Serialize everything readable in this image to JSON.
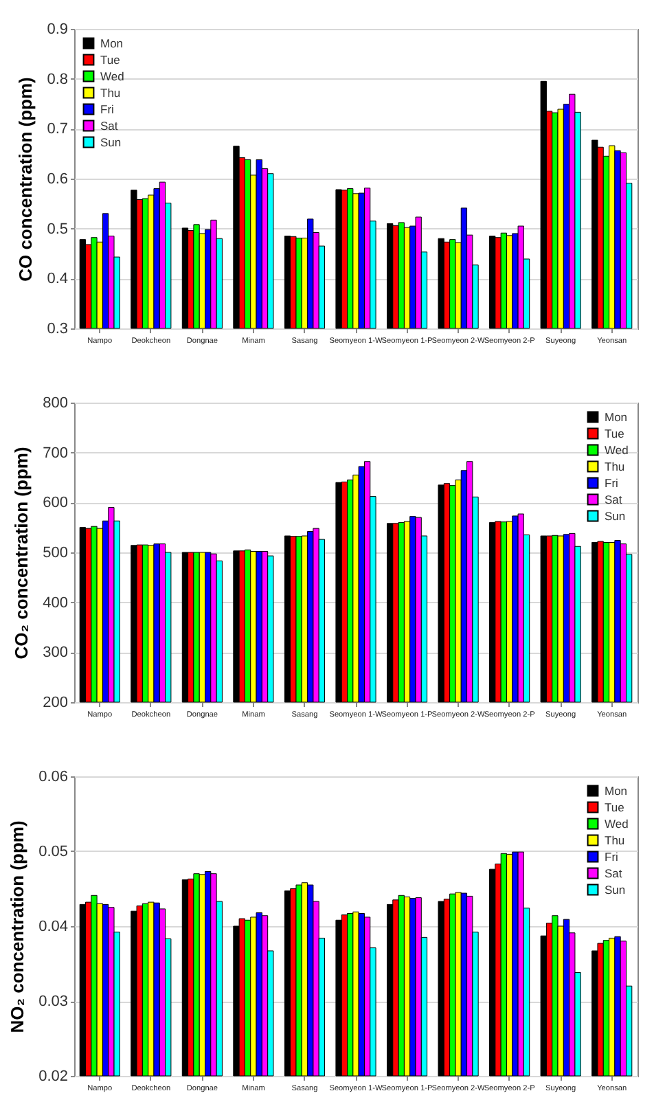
{
  "chart_data": [
    {
      "type": "bar",
      "ylabel": "CO concentration (ppm)",
      "categories": [
        "Nampo",
        "Deokcheon",
        "Dongnae",
        "Minam",
        "Sasang",
        "Seomyeon 1-W",
        "Seomyeon 1-P",
        "Seomyeon 2-W",
        "Seomyeon 2-P",
        "Suyeong",
        "Yeonsan"
      ],
      "ylim": [
        0.3,
        0.9
      ],
      "yticks": [
        0.3,
        0.4,
        0.5,
        0.6,
        0.7,
        0.8,
        0.9
      ],
      "grid": "y",
      "legend": "top left",
      "series": [
        {
          "name": "Mon",
          "color": "#000000",
          "values": [
            0.478,
            0.577,
            0.501,
            0.665,
            0.485,
            0.578,
            0.51,
            0.48,
            0.485,
            0.795,
            0.677
          ]
        },
        {
          "name": "Tue",
          "color": "#ff0000",
          "values": [
            0.468,
            0.558,
            0.496,
            0.642,
            0.484,
            0.577,
            0.506,
            0.473,
            0.482,
            0.735,
            0.663
          ]
        },
        {
          "name": "Wed",
          "color": "#00ff00",
          "values": [
            0.482,
            0.56,
            0.508,
            0.638,
            0.481,
            0.58,
            0.512,
            0.478,
            0.491,
            0.732,
            0.645
          ]
        },
        {
          "name": "Thu",
          "color": "#ffff00",
          "values": [
            0.473,
            0.567,
            0.49,
            0.607,
            0.481,
            0.57,
            0.502,
            0.472,
            0.486,
            0.739,
            0.666
          ]
        },
        {
          "name": "Fri",
          "color": "#0000ff",
          "values": [
            0.53,
            0.58,
            0.498,
            0.638,
            0.519,
            0.571,
            0.505,
            0.541,
            0.49,
            0.749,
            0.656
          ]
        },
        {
          "name": "Sat",
          "color": "#ff00ff",
          "values": [
            0.485,
            0.593,
            0.517,
            0.62,
            0.492,
            0.581,
            0.523,
            0.487,
            0.505,
            0.769,
            0.652
          ]
        },
        {
          "name": "Sun",
          "color": "#00ffff",
          "values": [
            0.443,
            0.551,
            0.48,
            0.61,
            0.465,
            0.515,
            0.453,
            0.427,
            0.439,
            0.733,
            0.591
          ]
        }
      ]
    },
    {
      "type": "bar",
      "ylabel": "CO₂ concentration (ppm)",
      "categories": [
        "Nampo",
        "Deokcheon",
        "Dongnae",
        "Minam",
        "Sasang",
        "Seomyeon 1-W",
        "Seomyeon 1-P",
        "Seomyeon 2-W",
        "Seomyeon 2-P",
        "Suyeong",
        "Yeonsan"
      ],
      "ylim": [
        200,
        800
      ],
      "yticks": [
        200,
        300,
        400,
        500,
        600,
        700,
        800
      ],
      "grid": "y",
      "legend": "top right",
      "series": [
        {
          "name": "Mon",
          "color": "#000000",
          "values": [
            550,
            514,
            500,
            503,
            533,
            640,
            558,
            635,
            560,
            533,
            520
          ]
        },
        {
          "name": "Tue",
          "color": "#ff0000",
          "values": [
            548,
            515,
            500,
            503,
            532,
            641,
            558,
            638,
            562,
            533,
            522
          ]
        },
        {
          "name": "Wed",
          "color": "#00ff00",
          "values": [
            552,
            515,
            500,
            505,
            532,
            645,
            560,
            634,
            561,
            534,
            520
          ]
        },
        {
          "name": "Thu",
          "color": "#ffff00",
          "values": [
            548,
            514,
            500,
            502,
            533,
            655,
            562,
            645,
            562,
            533,
            520
          ]
        },
        {
          "name": "Fri",
          "color": "#0000ff",
          "values": [
            563,
            517,
            500,
            502,
            542,
            672,
            572,
            664,
            573,
            536,
            524
          ]
        },
        {
          "name": "Sat",
          "color": "#ff00ff",
          "values": [
            590,
            517,
            497,
            502,
            548,
            682,
            570,
            682,
            577,
            538,
            517
          ]
        },
        {
          "name": "Sun",
          "color": "#00ffff",
          "values": [
            563,
            500,
            483,
            493,
            526,
            612,
            533,
            611,
            535,
            512,
            496
          ]
        }
      ]
    },
    {
      "type": "bar",
      "ylabel": "NO₂ concentration (ppm)",
      "categories": [
        "Nampo",
        "Deokcheon",
        "Dongnae",
        "Minam",
        "Sasang",
        "Seomyeon 1-W",
        "Seomyeon 1-P",
        "Seomyeon 2-W",
        "Seomyeon 2-P",
        "Suyeong",
        "Yeonsan"
      ],
      "ylim": [
        0.02,
        0.06
      ],
      "yticks": [
        0.02,
        0.03,
        0.04,
        0.05,
        0.06
      ],
      "grid": "y",
      "legend": "top right",
      "series": [
        {
          "name": "Mon",
          "color": "#000000",
          "values": [
            0.0429,
            0.042,
            0.0462,
            0.04,
            0.0447,
            0.0408,
            0.0429,
            0.0433,
            0.0476,
            0.0387,
            0.0367
          ]
        },
        {
          "name": "Tue",
          "color": "#ff0000",
          "values": [
            0.0432,
            0.0427,
            0.0463,
            0.041,
            0.045,
            0.0415,
            0.0435,
            0.0436,
            0.0483,
            0.0404,
            0.0377
          ]
        },
        {
          "name": "Wed",
          "color": "#00ff00",
          "values": [
            0.0441,
            0.043,
            0.047,
            0.0408,
            0.0455,
            0.0417,
            0.0441,
            0.0443,
            0.0497,
            0.0414,
            0.0381
          ]
        },
        {
          "name": "Thu",
          "color": "#ffff00",
          "values": [
            0.043,
            0.0432,
            0.0469,
            0.0412,
            0.0458,
            0.0419,
            0.0439,
            0.0445,
            0.0496,
            0.04,
            0.0384
          ]
        },
        {
          "name": "Fri",
          "color": "#0000ff",
          "values": [
            0.0429,
            0.0431,
            0.0473,
            0.0418,
            0.0455,
            0.0417,
            0.0437,
            0.0444,
            0.0499,
            0.0409,
            0.0386
          ]
        },
        {
          "name": "Sat",
          "color": "#ff00ff",
          "values": [
            0.0425,
            0.0423,
            0.047,
            0.0414,
            0.0433,
            0.0412,
            0.0438,
            0.044,
            0.0499,
            0.0391,
            0.038
          ]
        },
        {
          "name": "Sun",
          "color": "#00ffff",
          "values": [
            0.0392,
            0.0383,
            0.0433,
            0.0367,
            0.0384,
            0.0371,
            0.0385,
            0.0392,
            0.0424,
            0.0338,
            0.032
          ]
        }
      ]
    }
  ]
}
